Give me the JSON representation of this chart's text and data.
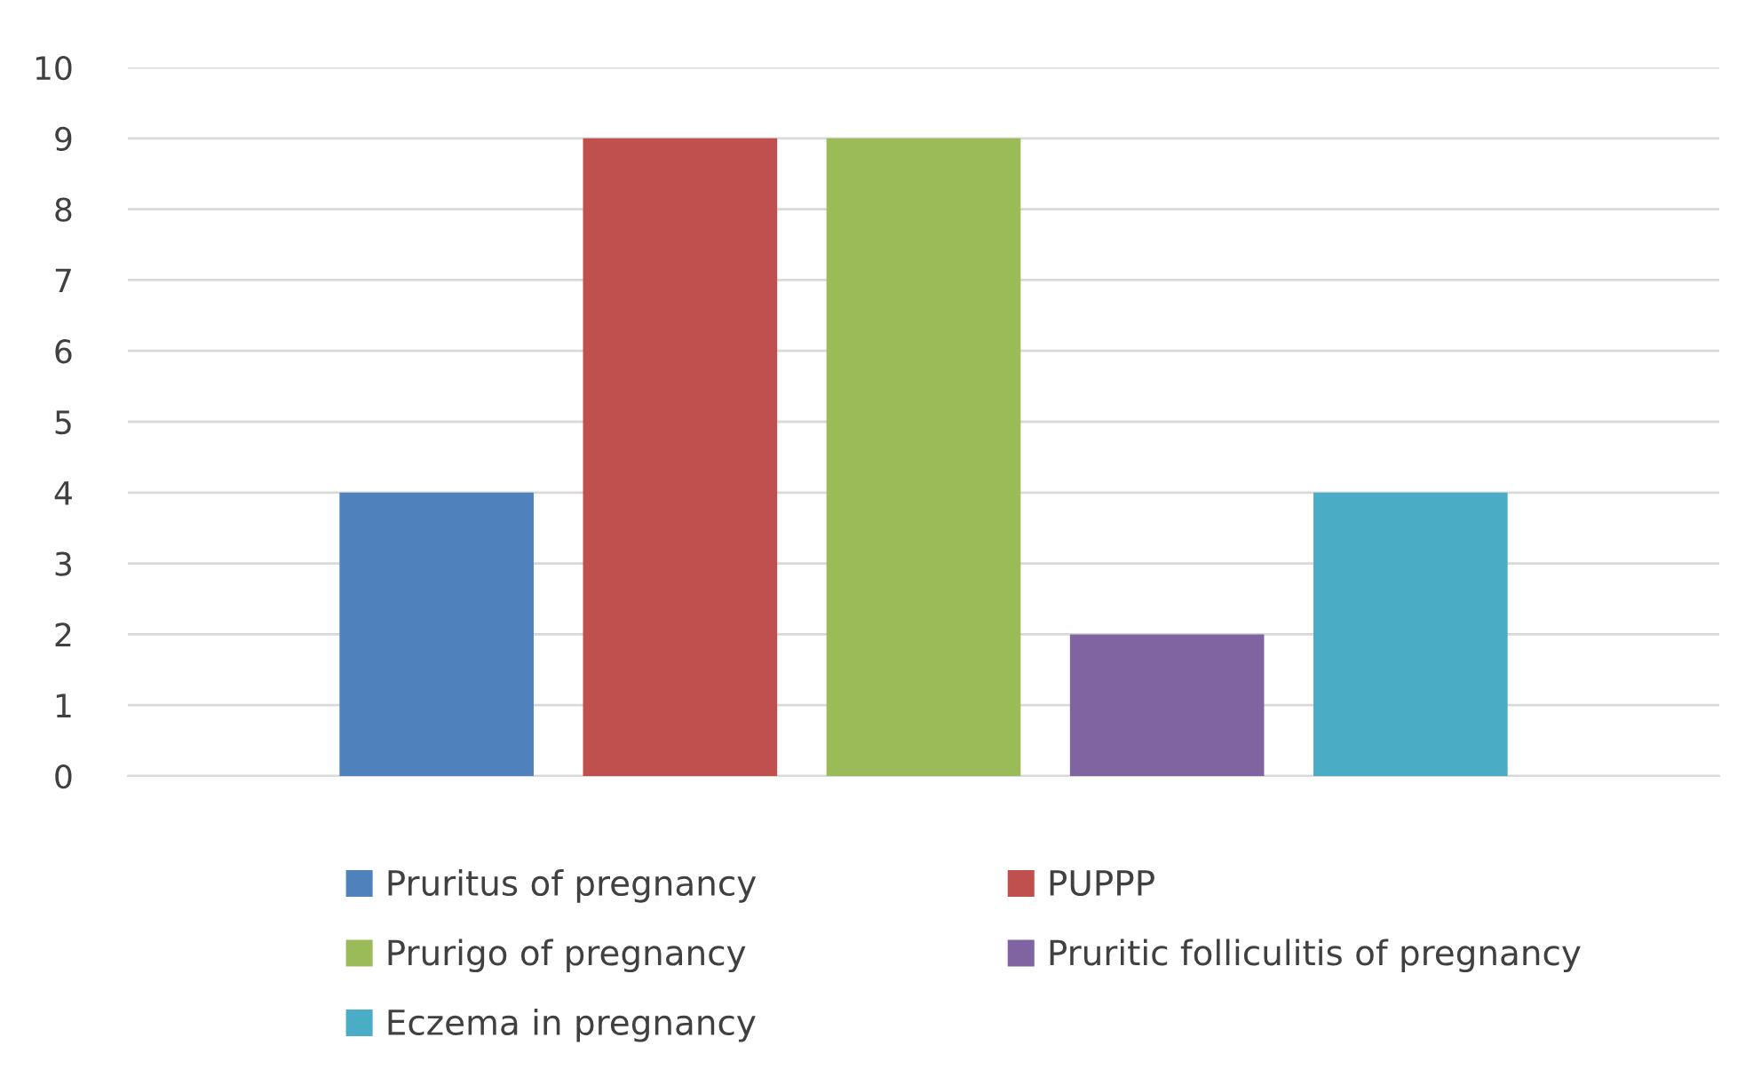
{
  "chart_data": {
    "type": "bar",
    "categories": [
      null
    ],
    "series": [
      {
        "name": "Pruritus of pregnancy",
        "color": "#4f81bd",
        "values": [
          4
        ]
      },
      {
        "name": "PUPPP",
        "color": "#c0504d",
        "values": [
          9
        ]
      },
      {
        "name": "Prurigo of pregnancy",
        "color": "#9bbb59",
        "values": [
          9
        ]
      },
      {
        "name": "Pruritic folliculitis of pregnancy",
        "color": "#8064a2",
        "values": [
          2
        ]
      },
      {
        "name": "Eczema in pregnancy",
        "color": "#4bacc6",
        "values": [
          4
        ]
      }
    ],
    "ylim": [
      0,
      10
    ],
    "yticks": [
      0,
      1,
      2,
      3,
      4,
      5,
      6,
      7,
      8,
      9,
      10
    ],
    "grid": "y",
    "legend": "bottom"
  }
}
